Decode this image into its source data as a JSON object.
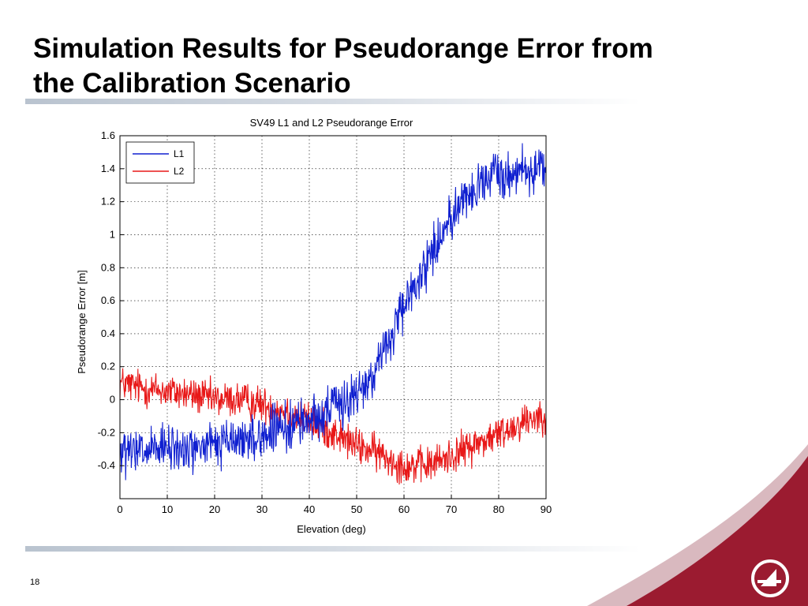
{
  "slide": {
    "title_line1": "Simulation Results for Pseudorange Error from",
    "title_line2": "the Calibration Scenario",
    "page_number": "18"
  },
  "colors": {
    "l1": "#1020d0",
    "l2": "#e81818",
    "brand": "#9b1b30",
    "rule": "#c6ced8"
  },
  "icons": {
    "logo": "brand-logo-icon"
  },
  "chart_data": {
    "type": "line",
    "title": "SV49 L1 and L2 Pseudorange Error",
    "xlabel": "Elevation (deg)",
    "ylabel": "Pseudorange Error [m]",
    "xlim": [
      0,
      90
    ],
    "ylim": [
      -0.6,
      1.6
    ],
    "xticks": [
      0,
      10,
      20,
      30,
      40,
      50,
      60,
      70,
      80,
      90
    ],
    "yticks": [
      -0.4,
      -0.2,
      0,
      0.2,
      0.4,
      0.6,
      0.8,
      1,
      1.2,
      1.4,
      1.6
    ],
    "ytick_labels": [
      "-0.4",
      "-0.2",
      "0",
      "0.2",
      "0.4",
      "0.6",
      "0.8",
      "1",
      "1.2",
      "1.4",
      "1.6"
    ],
    "grid": true,
    "legend_position": "top-left",
    "series": [
      {
        "name": "L1",
        "color": "#1020d0",
        "noise": 0.07,
        "x": [
          0,
          5,
          10,
          15,
          20,
          25,
          30,
          35,
          40,
          45,
          48,
          50,
          52,
          55,
          58,
          60,
          62,
          65,
          68,
          70,
          72,
          75,
          78,
          80,
          82,
          85,
          88,
          90
        ],
        "y": [
          -0.33,
          -0.32,
          -0.3,
          -0.3,
          -0.27,
          -0.25,
          -0.22,
          -0.17,
          -0.12,
          -0.05,
          0.0,
          0.02,
          0.1,
          0.25,
          0.42,
          0.55,
          0.68,
          0.85,
          1.0,
          1.12,
          1.2,
          1.27,
          1.33,
          1.37,
          1.38,
          1.39,
          1.4,
          1.4
        ]
      },
      {
        "name": "L2",
        "color": "#e81818",
        "noise": 0.055,
        "x": [
          0,
          5,
          10,
          15,
          20,
          25,
          30,
          35,
          40,
          45,
          50,
          55,
          60,
          65,
          70,
          75,
          80,
          85,
          88,
          90
        ],
        "y": [
          0.1,
          0.07,
          0.05,
          0.03,
          0.0,
          0.0,
          -0.03,
          -0.07,
          -0.13,
          -0.2,
          -0.28,
          -0.33,
          -0.4,
          -0.4,
          -0.34,
          -0.27,
          -0.21,
          -0.13,
          -0.1,
          -0.08
        ]
      }
    ]
  }
}
